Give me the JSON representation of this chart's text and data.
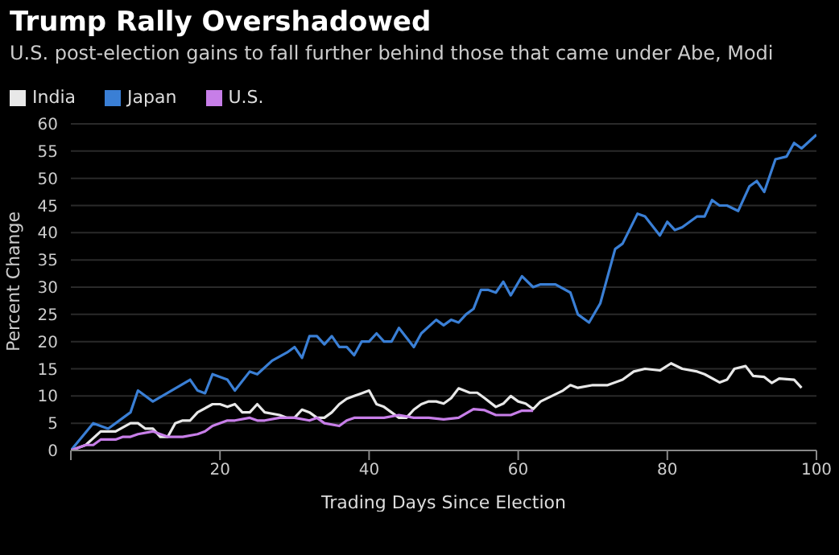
{
  "chart_data": {
    "type": "line",
    "title": "Trump Rally Overshadowed",
    "subtitle": "U.S. post-election gains to fall further behind those that came under Abe, Modi",
    "xlabel": "Trading Days Since Election",
    "ylabel": "Percent Change",
    "legend": "top left",
    "grid": "y",
    "marker": "none",
    "line_style": "solid",
    "xlim": [
      0,
      100
    ],
    "xticks": [
      {
        "value": 0,
        "label": null
      },
      20,
      40,
      60,
      80,
      100
    ],
    "ylim": [
      0,
      60
    ],
    "yticks": [
      0,
      5,
      10,
      15,
      20,
      25,
      30,
      35,
      40,
      45,
      50,
      55,
      60
    ],
    "series": [
      {
        "name": "India",
        "color": "#e8e8e8",
        "x": [
          0,
          2,
          4,
          6,
          8,
          9,
          10,
          11,
          12,
          13,
          14,
          15,
          16,
          17,
          19,
          20,
          21,
          22,
          23,
          24,
          25,
          26,
          28,
          29,
          30,
          31,
          32,
          33,
          34,
          35,
          36,
          37,
          38,
          39,
          40,
          41,
          42,
          43,
          44,
          45,
          46,
          47,
          48,
          49,
          50,
          51,
          52,
          53.5,
          54.5,
          55.5,
          57,
          58,
          59,
          60,
          61,
          62,
          63,
          64.5,
          66,
          67,
          68,
          70,
          72,
          74,
          75.5,
          77,
          79,
          80.5,
          82,
          84,
          85,
          87,
          88,
          89,
          90.5,
          91.5,
          93,
          94,
          95,
          97,
          98
        ],
        "values": [
          0,
          1,
          3.5,
          3.5,
          5,
          5,
          4,
          4,
          2.5,
          2.5,
          5,
          5.5,
          5.5,
          7,
          8.5,
          8.5,
          8,
          8.5,
          7,
          7,
          8.5,
          7,
          6.5,
          6,
          6,
          7.5,
          7,
          6,
          6,
          7,
          8.5,
          9.5,
          10,
          10.5,
          11,
          8.5,
          8,
          7,
          6,
          6,
          7.5,
          8.5,
          9,
          9,
          8.6,
          9.6,
          11.4,
          10.6,
          10.6,
          9.6,
          8,
          8.6,
          10,
          9,
          8.6,
          7.6,
          9,
          10,
          11,
          12,
          11.5,
          12,
          12,
          13,
          14.5,
          15,
          14.7,
          16,
          15,
          14.5,
          14,
          12.5,
          13,
          15,
          15.5,
          13.7,
          13.5,
          12.4,
          13.2,
          13,
          11.5
        ]
      },
      {
        "name": "Japan",
        "color": "#3a7fd5",
        "x": [
          0,
          3,
          5,
          8,
          9,
          11,
          16,
          17,
          18,
          19,
          21,
          22,
          24,
          25,
          27,
          29,
          30,
          31,
          32,
          33,
          34,
          35,
          36,
          37,
          38,
          39,
          40,
          41,
          42,
          43,
          44,
          46,
          47,
          49,
          50,
          51,
          52,
          53,
          54,
          55,
          56,
          57,
          58,
          59,
          60.5,
          62,
          63,
          65,
          67,
          68,
          69.5,
          71,
          73,
          74,
          76,
          77,
          79,
          80,
          81,
          82,
          84,
          85,
          86,
          87,
          88,
          89.5,
          91,
          92,
          93,
          94.5,
          96,
          97,
          98,
          100
        ],
        "values": [
          0,
          5,
          4,
          7,
          11,
          9,
          13,
          11,
          10.5,
          14,
          13,
          11,
          14.5,
          14,
          16.5,
          18,
          19,
          17,
          21,
          21,
          19.5,
          21,
          19,
          19,
          17.5,
          20,
          20,
          21.5,
          20,
          20,
          22.5,
          19,
          21.5,
          24,
          23,
          24,
          23.5,
          25,
          26,
          29.5,
          29.5,
          29,
          31,
          28.5,
          32,
          30,
          30.5,
          30.5,
          29,
          25,
          23.5,
          27,
          37,
          38,
          43.5,
          43,
          39.5,
          42,
          40.5,
          41,
          43,
          43,
          46,
          45,
          45,
          44,
          48.5,
          49.5,
          47.5,
          53.5,
          54,
          56.5,
          55.5,
          58
        ]
      },
      {
        "name": "U.S.",
        "color": "#c77ee8",
        "x": [
          0,
          2,
          3,
          4,
          6,
          7,
          8,
          9,
          11,
          12,
          13,
          15,
          17,
          18,
          19,
          21,
          22,
          24,
          25,
          26,
          28,
          30,
          32,
          33,
          34,
          36,
          37,
          38,
          40,
          42,
          44,
          46,
          48,
          50,
          52,
          54,
          55.5,
          57,
          59,
          60.5,
          62
        ],
        "values": [
          0,
          1,
          1,
          2,
          2,
          2.5,
          2.5,
          3,
          3.5,
          3,
          2.5,
          2.5,
          3,
          3.5,
          4.5,
          5.5,
          5.5,
          6,
          5.5,
          5.5,
          6,
          6,
          5.5,
          6,
          5,
          4.5,
          5.5,
          6,
          6,
          6,
          6.5,
          6,
          6,
          5.7,
          6,
          7.6,
          7.4,
          6.5,
          6.5,
          7.3,
          7.3
        ]
      }
    ]
  }
}
